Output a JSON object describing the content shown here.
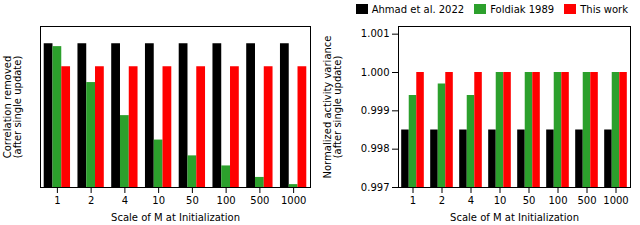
{
  "chart_data": [
    {
      "type": "bar",
      "xlabel": "Scale of M at Initialization",
      "ylabel": "Correlation removed\n(after single update)",
      "categories": [
        "1",
        "2",
        "4",
        "10",
        "50",
        "100",
        "500",
        "1000"
      ],
      "series": [
        {
          "color": "black",
          "values": [
            1.0,
            1.0,
            1.0,
            1.0,
            1.0,
            1.0,
            1.0,
            1.0
          ]
        },
        {
          "color": "#2ca02c",
          "values": [
            0.98,
            0.73,
            0.5,
            0.33,
            0.22,
            0.15,
            0.07,
            0.02
          ]
        },
        {
          "color": "red",
          "values": [
            0.84,
            0.84,
            0.84,
            0.84,
            0.84,
            0.84,
            0.84,
            0.84
          ]
        }
      ],
      "ylim": [
        0,
        1.12
      ],
      "yticks": [],
      "tick_labels": "x"
    },
    {
      "type": "bar",
      "xlabel": "Scale of M at Initialization",
      "ylabel": "Normalized activity variance\n(after single update)",
      "categories": [
        "1",
        "2",
        "4",
        "10",
        "50",
        "100",
        "500",
        "1000"
      ],
      "series": [
        {
          "name": "Ahmad et al. 2022",
          "color": "black",
          "values": [
            0.9985,
            0.9985,
            0.9985,
            0.9985,
            0.9985,
            0.9985,
            0.9985,
            0.9985
          ]
        },
        {
          "name": "Foldiak 1989",
          "color": "#2ca02c",
          "values": [
            0.9994,
            0.9997,
            0.9994,
            1.0,
            1.0,
            1.0,
            1.0,
            1.0
          ]
        },
        {
          "name": "This work",
          "color": "red",
          "values": [
            1.0,
            1.0,
            1.0,
            1.0,
            1.0,
            1.0,
            1.0,
            1.0
          ]
        }
      ],
      "ylim": [
        0.997,
        1.0012
      ],
      "yticks": [
        0.997,
        0.998,
        0.999,
        {
          "value": 1,
          "label": "1.000"
        },
        1.001
      ],
      "legend": "upper right"
    }
  ]
}
